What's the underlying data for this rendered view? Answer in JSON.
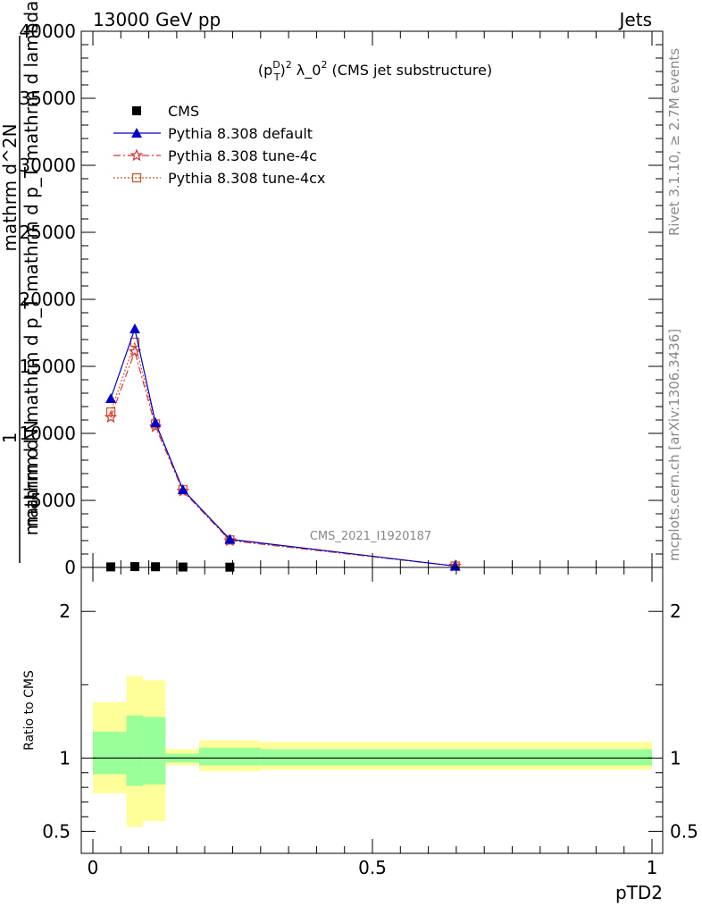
{
  "header": {
    "left": "13000 GeV pp",
    "right": "Jets"
  },
  "side_labels": {
    "rivet": "Rivet 3.1.10, ≥ 2.7M events",
    "mcplots": "mcplots.cern.ch [arXiv:1306.3436]"
  },
  "watermark": "CMS_2021_I1920187",
  "colors": {
    "cms": "#000000",
    "default": "#0000cc",
    "tune4c": "#dd3333",
    "tune4cx": "#cc5522",
    "band_outer": "#ffff99",
    "band_inner": "#99ff99"
  },
  "chart_data": [
    {
      "type": "line",
      "title": "(p_T^D)^2 λ_0^2 (CMS jet substructure)",
      "ylabel_lines": [
        "1",
        "mathrm d N",
        "mathrm d N mathrm d p_T mathrm d p_T mathrm d lambda",
        "mathrm d^2N"
      ],
      "xlim": [
        0,
        1
      ],
      "ylim": [
        0,
        40000
      ],
      "y_ticks": [
        "0",
        "5000",
        "10000",
        "15000",
        "20000",
        "25000",
        "30000",
        "35000",
        "40000"
      ],
      "legend": [
        "CMS",
        "Pythia 8.308 default",
        "Pythia 8.308 tune-4c",
        "Pythia 8.308 tune-4cx"
      ],
      "legend_position": "top-left",
      "x": [
        0.032,
        0.075,
        0.112,
        0.161,
        0.245,
        0.648
      ],
      "series": [
        {
          "name": "CMS",
          "values": [
            40,
            60,
            50,
            30,
            20,
            0
          ]
        },
        {
          "name": "Pythia 8.308 default",
          "values": [
            12600,
            17800,
            10800,
            5800,
            2100,
            100
          ]
        },
        {
          "name": "Pythia 8.308 tune-4c",
          "values": [
            11200,
            16100,
            10500,
            5700,
            2000,
            100
          ]
        },
        {
          "name": "Pythia 8.308 tune-4cx",
          "values": [
            11600,
            16800,
            10700,
            5800,
            2050,
            100
          ]
        }
      ]
    },
    {
      "type": "area",
      "ylabel": "Ratio to CMS",
      "xlabel": "pTD2",
      "xlim": [
        0,
        1
      ],
      "ylim": [
        0.35,
        2.3
      ],
      "y_ticks": [
        "0.5",
        "1",
        "2"
      ],
      "x_ticks": [
        "0",
        "0.5",
        "1"
      ],
      "bins": [
        {
          "lo": 0.0,
          "hi": 0.06,
          "outer": [
            0.76,
            1.38
          ],
          "inner": [
            0.89,
            1.18
          ]
        },
        {
          "lo": 0.06,
          "hi": 0.09,
          "outer": [
            0.53,
            1.56
          ],
          "inner": [
            0.81,
            1.29
          ]
        },
        {
          "lo": 0.09,
          "hi": 0.13,
          "outer": [
            0.57,
            1.53
          ],
          "inner": [
            0.82,
            1.28
          ]
        },
        {
          "lo": 0.13,
          "hi": 0.19,
          "outer": [
            0.95,
            1.06
          ],
          "inner": [
            0.97,
            1.03
          ]
        },
        {
          "lo": 0.19,
          "hi": 0.3,
          "outer": [
            0.91,
            1.12
          ],
          "inner": [
            0.95,
            1.07
          ]
        },
        {
          "lo": 0.3,
          "hi": 1.0,
          "outer": [
            0.92,
            1.11
          ],
          "inner": [
            0.95,
            1.06
          ]
        }
      ]
    }
  ]
}
